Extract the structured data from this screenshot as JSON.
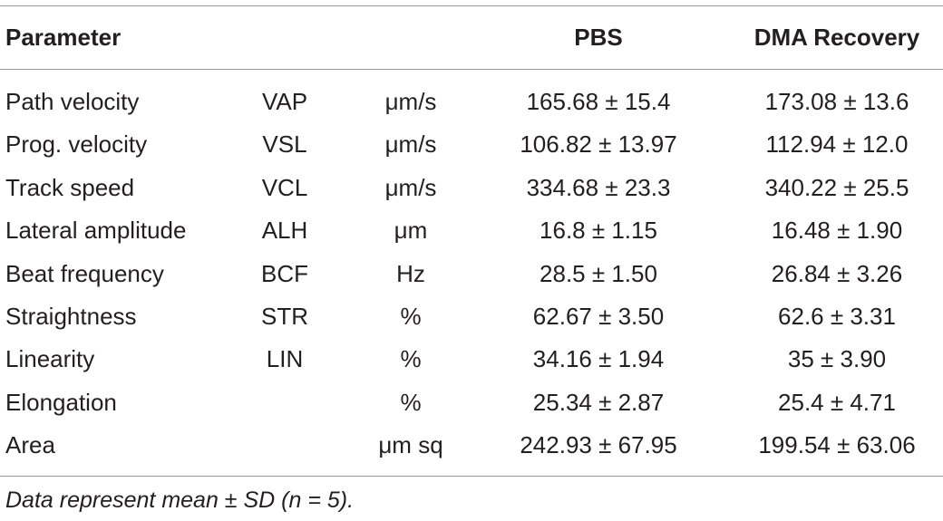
{
  "table": {
    "headers": {
      "parameter": "Parameter",
      "abbreviation": "",
      "unit": "",
      "pbs": "PBS",
      "dma": "DMA Recovery"
    },
    "rows": [
      {
        "parameter": "Path velocity",
        "abbreviation": "VAP",
        "unit": "μm/s",
        "pbs": "165.68 ± 15.4",
        "dma": "173.08 ± 13.6"
      },
      {
        "parameter": "Prog. velocity",
        "abbreviation": "VSL",
        "unit": "μm/s",
        "pbs": "106.82 ± 13.97",
        "dma": "112.94 ± 12.0"
      },
      {
        "parameter": "Track speed",
        "abbreviation": "VCL",
        "unit": "μm/s",
        "pbs": "334.68 ± 23.3",
        "dma": "340.22 ± 25.5"
      },
      {
        "parameter": "Lateral amplitude",
        "abbreviation": "ALH",
        "unit": "μm",
        "pbs": "16.8 ± 1.15",
        "dma": "16.48 ± 1.90"
      },
      {
        "parameter": "Beat frequency",
        "abbreviation": "BCF",
        "unit": "Hz",
        "pbs": "28.5 ± 1.50",
        "dma": "26.84 ± 3.26"
      },
      {
        "parameter": "Straightness",
        "abbreviation": "STR",
        "unit": "%",
        "pbs": "62.67 ± 3.50",
        "dma": "62.6 ± 3.31"
      },
      {
        "parameter": "Linearity",
        "abbreviation": "LIN",
        "unit": "%",
        "pbs": "34.16 ± 1.94",
        "dma": "35 ± 3.90"
      },
      {
        "parameter": "Elongation",
        "abbreviation": "",
        "unit": "%",
        "pbs": "25.34 ± 2.87",
        "dma": "25.4 ± 4.71"
      },
      {
        "parameter": "Area",
        "abbreviation": "",
        "unit": "μm sq",
        "pbs": "242.93 ± 67.95",
        "dma": "199.54 ± 63.06"
      }
    ]
  },
  "footnote": "Data represent mean ± SD (n = 5)."
}
